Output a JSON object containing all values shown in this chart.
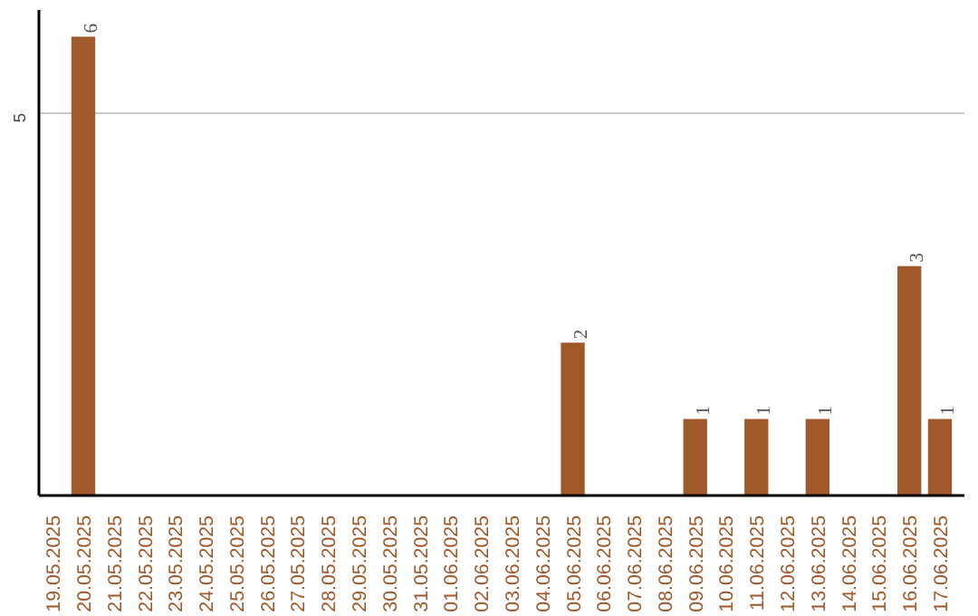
{
  "chart_data": {
    "type": "bar",
    "categories": [
      "19.05.2025",
      "20.05.2025",
      "21.05.2025",
      "22.05.2025",
      "23.05.2025",
      "24.05.2025",
      "25.05.2025",
      "26.05.2025",
      "27.05.2025",
      "28.05.2025",
      "29.05.2025",
      "30.05.2025",
      "31.05.2025",
      "01.06.2025",
      "02.06.2025",
      "03.06.2025",
      "04.06.2025",
      "05.06.2025",
      "06.06.2025",
      "07.06.2025",
      "08.06.2025",
      "09.06.2025",
      "10.06.2025",
      "11.06.2025",
      "12.06.2025",
      "13.06.2025",
      "14.06.2025",
      "15.06.2025",
      "16.06.2025",
      "17.06.2025"
    ],
    "values": [
      0,
      6,
      0,
      0,
      0,
      0,
      0,
      0,
      0,
      0,
      0,
      0,
      0,
      0,
      0,
      0,
      0,
      2,
      0,
      0,
      0,
      1,
      0,
      1,
      0,
      1,
      0,
      0,
      3,
      1
    ],
    "value_labels": [
      null,
      "6",
      null,
      null,
      null,
      null,
      null,
      null,
      null,
      null,
      null,
      null,
      null,
      null,
      null,
      null,
      null,
      "2",
      null,
      null,
      null,
      "1",
      null,
      "1",
      null,
      "1",
      null,
      null,
      "3",
      "1"
    ],
    "color": "#a0592b",
    "ylim": [
      0,
      6.35
    ],
    "yticks": [
      5
    ],
    "grid": "y"
  }
}
